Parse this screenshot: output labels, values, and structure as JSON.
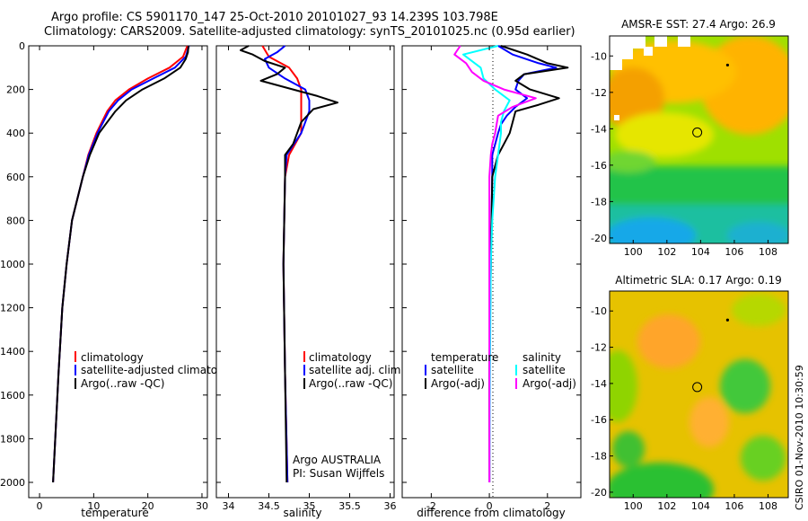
{
  "header": {
    "line1": "Argo profile: CS 5901170_147 25-Oct-2010 20101027_93 14.239S 103.798E",
    "line2": "Climatology: CARS2009. Satellite-adjusted climatology: synTS_20101025.nc (0.95d earlier)"
  },
  "side_label": "CSIRO 01-Nov-2010 10:30:59",
  "colors": {
    "climatology": "#ff0000",
    "satellite": "#0000ff",
    "argo": "#000000",
    "cyan": "#00ffff",
    "magenta": "#ff00ff"
  },
  "chart_data": [
    {
      "type": "line",
      "id": "temperature",
      "xlabel": "temperature",
      "ylabel": "",
      "xlim": [
        -2,
        31
      ],
      "ylim": [
        2070,
        0
      ],
      "xticks": [
        0,
        10,
        20,
        30
      ],
      "yticks": [
        0,
        200,
        400,
        600,
        800,
        1000,
        1200,
        1400,
        1600,
        1800,
        2000
      ],
      "legend": [
        "climatology",
        "satellite-adjusted climatology",
        "Argo(..raw -QC)"
      ],
      "series": [
        {
          "name": "climatology",
          "color": "#ff0000",
          "depth": [
            0,
            50,
            100,
            150,
            200,
            250,
            300,
            400,
            500,
            600,
            800,
            1000,
            1200,
            1500,
            2000
          ],
          "values": [
            27.3,
            26.5,
            24,
            20,
            16.5,
            14,
            12.5,
            10.5,
            9,
            8,
            6,
            5,
            4.2,
            3.5,
            2.5
          ]
        },
        {
          "name": "satellite-adjusted climatology",
          "color": "#0000ff",
          "depth": [
            0,
            50,
            100,
            150,
            200,
            250,
            300,
            400,
            500,
            600,
            800,
            1000,
            1200,
            1500,
            2000
          ],
          "values": [
            27.6,
            27,
            25,
            21,
            17,
            14.5,
            12.8,
            10.7,
            9.1,
            8,
            6,
            5,
            4.2,
            3.5,
            2.5
          ]
        },
        {
          "name": "Argo(..raw -QC)",
          "color": "#000000",
          "depth": [
            0,
            30,
            60,
            100,
            150,
            200,
            250,
            300,
            350,
            400,
            500,
            600,
            800,
            1000,
            1200,
            1500,
            2000
          ],
          "values": [
            27.5,
            27.4,
            27,
            26,
            23,
            19,
            16,
            14,
            12.5,
            11,
            9.3,
            8,
            6,
            5,
            4.2,
            3.5,
            2.5
          ]
        }
      ]
    },
    {
      "type": "line",
      "id": "salinity",
      "xlabel": "salinity",
      "ylabel": "",
      "xlim": [
        33.85,
        36.05
      ],
      "ylim": [
        2070,
        0
      ],
      "xticks": [
        34,
        34.5,
        35,
        35.5,
        36
      ],
      "yticks": [
        0,
        200,
        400,
        600,
        800,
        1000,
        1200,
        1400,
        1600,
        1800,
        2000
      ],
      "legend": [
        "climatology",
        "satellite adj. clim.",
        "Argo(..raw -QC)"
      ],
      "annotation": [
        "Argo AUSTRALIA",
        "PI: Susan Wijffels"
      ],
      "series": [
        {
          "name": "climatology",
          "color": "#ff0000",
          "depth": [
            0,
            50,
            100,
            150,
            200,
            250,
            300,
            400,
            500,
            600,
            1000,
            1500,
            2000
          ],
          "values": [
            34.42,
            34.5,
            34.75,
            34.85,
            34.9,
            34.9,
            34.9,
            34.9,
            34.75,
            34.7,
            34.68,
            34.7,
            34.73
          ]
        },
        {
          "name": "satellite adj. clim.",
          "color": "#0000ff",
          "depth": [
            0,
            30,
            60,
            100,
            150,
            200,
            250,
            300,
            400,
            500,
            600,
            1000,
            1500,
            2000
          ],
          "values": [
            34.7,
            34.6,
            34.45,
            34.5,
            34.7,
            34.95,
            35.0,
            35.0,
            34.9,
            34.72,
            34.7,
            34.68,
            34.7,
            34.73
          ]
        },
        {
          "name": "Argo(..raw -QC)",
          "color": "#000000",
          "depth": [
            0,
            20,
            40,
            70,
            100,
            130,
            160,
            200,
            230,
            260,
            290,
            350,
            400,
            450,
            500,
            600,
            1000,
            1500,
            2000
          ],
          "values": [
            34.25,
            34.15,
            34.3,
            34.45,
            34.7,
            34.6,
            34.4,
            34.8,
            35.1,
            35.35,
            35.05,
            34.9,
            34.85,
            34.8,
            34.7,
            34.7,
            34.68,
            34.7,
            34.72
          ]
        }
      ]
    },
    {
      "type": "line",
      "id": "difference",
      "xlabel": "difference from climatology",
      "ylabel": "",
      "xlim": [
        -3,
        3.15
      ],
      "ylim": [
        2070,
        0
      ],
      "xticks": [
        -2,
        0,
        2
      ],
      "yticks": [
        0,
        200,
        400,
        600,
        800,
        1000,
        1200,
        1400,
        1600,
        1800,
        2000
      ],
      "legend": [
        "temperature",
        "satellite",
        "Argo(-adj)",
        "salinity",
        "satellite",
        "Argo(-adj)"
      ],
      "series": [
        {
          "name": "satellite",
          "color": "#0000ff",
          "depth": [
            0,
            40,
            80,
            100,
            130,
            160,
            200,
            240,
            280,
            320,
            360,
            400,
            500,
            600,
            1000,
            1500,
            2000
          ],
          "values": [
            0.3,
            0.8,
            1.7,
            2.3,
            1.2,
            1.0,
            0.9,
            1.3,
            0.9,
            0.6,
            0.4,
            0.3,
            0.1,
            0.1,
            0.05,
            0.0,
            0.0
          ]
        },
        {
          "name": "Argo(-adj)",
          "color": "#000000",
          "depth": [
            0,
            40,
            80,
            100,
            130,
            160,
            200,
            240,
            270,
            300,
            350,
            400,
            450,
            500,
            600,
            1000,
            1500,
            2000
          ],
          "values": [
            0.4,
            1.3,
            2.0,
            2.7,
            1.2,
            0.9,
            1.4,
            2.4,
            1.7,
            0.9,
            0.8,
            0.7,
            0.5,
            0.3,
            0.1,
            0.05,
            0.0,
            0.0
          ]
        },
        {
          "name": "satellite",
          "color": "#00ffff",
          "depth": [
            0,
            40,
            80,
            100,
            150,
            200,
            250,
            300,
            350,
            400,
            450,
            500,
            600,
            800,
            1000,
            1500,
            2000
          ],
          "values": [
            0.3,
            -0.9,
            -0.5,
            -0.3,
            -0.2,
            0.2,
            0.7,
            0.5,
            0.4,
            0.4,
            0.35,
            0.3,
            0.2,
            0.1,
            0.05,
            0.02,
            0.0
          ]
        },
        {
          "name": "Argo(-adj)",
          "color": "#ff00ff",
          "depth": [
            0,
            40,
            80,
            120,
            160,
            200,
            240,
            280,
            320,
            400,
            450,
            500,
            600,
            1000,
            1500,
            2000
          ],
          "values": [
            -1.0,
            -1.2,
            -0.8,
            -0.6,
            -0.2,
            0.5,
            1.6,
            0.8,
            0.3,
            0.2,
            0.1,
            0.05,
            0.0,
            0.0,
            0.0,
            0.0
          ]
        }
      ]
    },
    {
      "type": "heatmap",
      "id": "sst_map",
      "title": "AMSR-E SST: 27.4 Argo: 26.9",
      "xlim": [
        98.6,
        109.2
      ],
      "ylim": [
        -20.3,
        -8.9
      ],
      "xticks": [
        100,
        102,
        104,
        106,
        108
      ],
      "yticks": [
        -10,
        -12,
        -14,
        -16,
        -18,
        -20
      ],
      "argo_position": [
        103.8,
        -14.2
      ],
      "mark_position": [
        105.6,
        -10.5
      ]
    },
    {
      "type": "heatmap",
      "id": "sla_map",
      "title": "Altimetric SLA: 0.17 Argo: 0.19",
      "xlim": [
        98.6,
        109.2
      ],
      "ylim": [
        -20.3,
        -8.9
      ],
      "xticks": [
        100,
        102,
        104,
        106,
        108
      ],
      "yticks": [
        -10,
        -12,
        -14,
        -16,
        -18,
        -20
      ],
      "argo_position": [
        103.8,
        -14.2
      ],
      "mark_position": [
        105.6,
        -10.5
      ]
    }
  ]
}
